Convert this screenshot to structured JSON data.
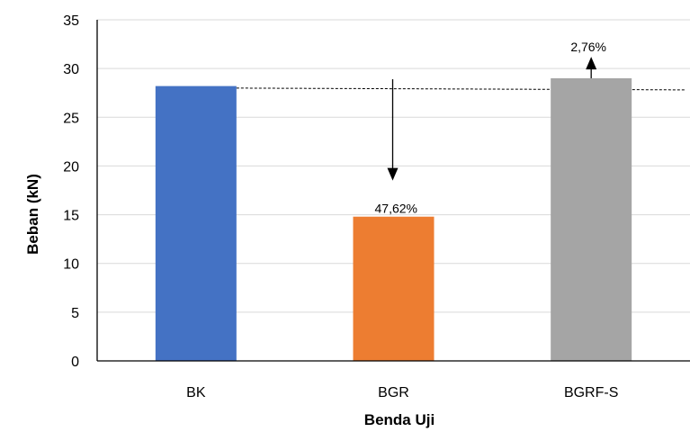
{
  "chart_data": {
    "type": "bar",
    "categories": [
      "BK",
      "BGR",
      "BGRF-S"
    ],
    "values": [
      28.2,
      14.8,
      29.0
    ],
    "colors": [
      "#4472c4",
      "#ed7d31",
      "#a5a5a5"
    ],
    "xlabel": "Benda Uji",
    "ylabel": "Beban (kN)",
    "ylim": [
      0,
      35
    ],
    "yticks": [
      0,
      5,
      10,
      15,
      20,
      25,
      30,
      35
    ],
    "grid": true,
    "reference_line": 27.9,
    "annotations": [
      {
        "category": "BGR",
        "text": "47,62%",
        "direction": "down",
        "from": 28.9,
        "to": 18.5
      },
      {
        "category": "BGRF-S",
        "text": "2,76%",
        "direction": "up",
        "from": 29.0,
        "to": 31.2
      }
    ]
  }
}
